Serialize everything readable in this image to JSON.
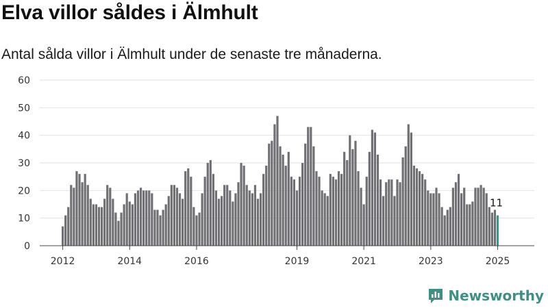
{
  "header": {
    "title": "Elva villor såldes i Älmhult",
    "subtitle": "Antal sålda villor i Älmhult under de senaste tre månaderna."
  },
  "brand": {
    "name": "Newsworthy",
    "color": "#3f8f84"
  },
  "colors": {
    "bar": "#707074",
    "highlight": "#2a9d8f",
    "grid": "#e2e2e2"
  },
  "chart_data": {
    "type": "bar",
    "title": "Elva villor såldes i Älmhult",
    "xlabel": "",
    "ylabel": "",
    "ylim": [
      0,
      60
    ],
    "yticks": [
      0,
      10,
      20,
      30,
      40,
      50,
      60
    ],
    "xticks": [
      "2012",
      "2014",
      "2016",
      "2019",
      "2021",
      "2023",
      "2025"
    ],
    "xtick_months": [
      0,
      24,
      48,
      84,
      108,
      132,
      156
    ],
    "first_month": "2012-01",
    "last_label": "11",
    "grid": "horizontal",
    "values": [
      7,
      11,
      14,
      22,
      21,
      27,
      26,
      23,
      26,
      22,
      17,
      15,
      15,
      14,
      14,
      17,
      22,
      21,
      17,
      12,
      9,
      12,
      15,
      19,
      16,
      15,
      19,
      20,
      21,
      20,
      20,
      20,
      19,
      13,
      13,
      11,
      13,
      15,
      18,
      22,
      22,
      21,
      19,
      17,
      27,
      28,
      25,
      14,
      11,
      12,
      19,
      25,
      30,
      31,
      26,
      20,
      17,
      18,
      22,
      22,
      20,
      16,
      19,
      23,
      30,
      29,
      22,
      20,
      19,
      22,
      17,
      19,
      26,
      29,
      37,
      38,
      44,
      47,
      36,
      33,
      29,
      34,
      25,
      24,
      20,
      25,
      30,
      37,
      43,
      43,
      36,
      27,
      25,
      20,
      19,
      18,
      26,
      25,
      24,
      27,
      26,
      34,
      31,
      40,
      35,
      38,
      27,
      21,
      15,
      25,
      34,
      42,
      41,
      33,
      24,
      18,
      23,
      24,
      24,
      18,
      24,
      23,
      32,
      36,
      44,
      41,
      29,
      28,
      27,
      26,
      24,
      20,
      19,
      19,
      21,
      19,
      14,
      11,
      13,
      14,
      21,
      23,
      26,
      19,
      21,
      15,
      15,
      16,
      21,
      21,
      22,
      21,
      19,
      14,
      12,
      13,
      11
    ]
  }
}
